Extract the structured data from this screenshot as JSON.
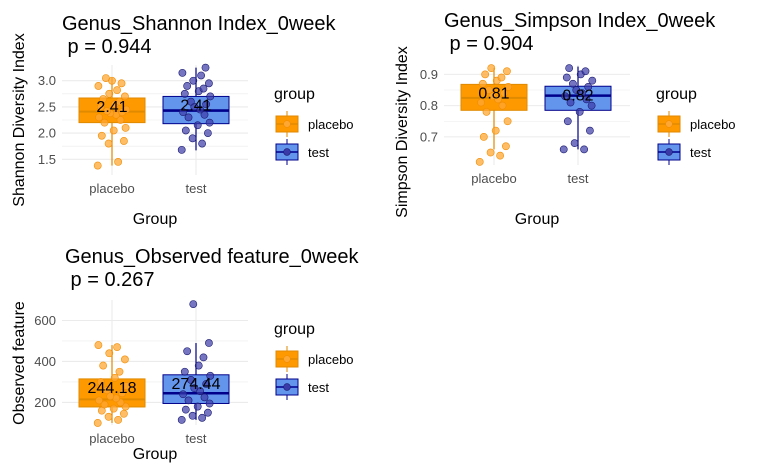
{
  "colors": {
    "placebo_fill": "#FF9900",
    "placebo_line": "#E08A00",
    "placebo_point": "#FFA733",
    "test_fill": "#6495ED",
    "test_line": "#00008B",
    "test_point": "#3A3AA8",
    "grid": "#ebebeb"
  },
  "chart_data": [
    {
      "type": "box",
      "title": "Genus_Shannon Index_0week",
      "subtitle": " p = 0.944",
      "xlabel": "Group",
      "ylabel": "Shannon Diversity Index",
      "categories": [
        "placebo",
        "test"
      ],
      "ylim": [
        1.2,
        3.3
      ],
      "yticks": [
        1.5,
        2.0,
        2.5,
        3.0
      ],
      "ytick_labels": [
        "1.5",
        "2.0",
        "2.5",
        "3.0"
      ],
      "legend_title": "group",
      "legend": [
        "placebo",
        "test"
      ],
      "boxes": [
        {
          "name": "placebo",
          "whisker_low": 1.38,
          "q1": 2.2,
          "median": 2.41,
          "q3": 2.67,
          "whisker_high": 3.05,
          "mean_label": "2.41"
        },
        {
          "name": "test",
          "whisker_low": 1.67,
          "q1": 2.18,
          "median": 2.43,
          "q3": 2.7,
          "whisker_high": 3.25,
          "mean_label": "2.41"
        }
      ],
      "points": [
        [
          1.38,
          1.45,
          1.8,
          1.85,
          1.95,
          2.05,
          2.1,
          2.2,
          2.25,
          2.3,
          2.35,
          2.38,
          2.4,
          2.42,
          2.45,
          2.5,
          2.55,
          2.6,
          2.65,
          2.7,
          2.75,
          2.82,
          2.9,
          2.95,
          3.0,
          3.05
        ],
        [
          1.68,
          1.8,
          1.9,
          2.0,
          2.05,
          2.15,
          2.2,
          2.3,
          2.35,
          2.4,
          2.45,
          2.5,
          2.55,
          2.6,
          2.7,
          2.75,
          2.8,
          2.85,
          2.9,
          2.95,
          3.0,
          3.1,
          3.15,
          3.25
        ]
      ]
    },
    {
      "type": "box",
      "title": "Genus_Simpson Index_0week",
      "subtitle": " p = 0.904",
      "xlabel": "Group",
      "ylabel": "Simpson Diversity Index",
      "categories": [
        "placebo",
        "test"
      ],
      "ylim": [
        0.61,
        0.93
      ],
      "yticks": [
        0.7,
        0.8,
        0.9
      ],
      "ytick_labels": [
        "0.7",
        "0.8",
        "0.9"
      ],
      "legend_title": "group",
      "legend": [
        "placebo",
        "test"
      ],
      "boxes": [
        {
          "name": "placebo",
          "whisker_low": 0.66,
          "q1": 0.785,
          "median": 0.825,
          "q3": 0.868,
          "whisker_high": 0.92,
          "mean_label": "0.81"
        },
        {
          "name": "test",
          "whisker_low": 0.66,
          "q1": 0.785,
          "median": 0.832,
          "q3": 0.862,
          "whisker_high": 0.925,
          "mean_label": "0.82"
        }
      ],
      "points": [
        [
          0.62,
          0.64,
          0.65,
          0.67,
          0.7,
          0.72,
          0.75,
          0.78,
          0.8,
          0.81,
          0.82,
          0.83,
          0.84,
          0.85,
          0.86,
          0.87,
          0.88,
          0.89,
          0.9,
          0.91,
          0.92
        ],
        [
          0.66,
          0.66,
          0.68,
          0.72,
          0.75,
          0.78,
          0.8,
          0.81,
          0.82,
          0.83,
          0.84,
          0.85,
          0.86,
          0.87,
          0.88,
          0.89,
          0.9,
          0.91,
          0.92
        ]
      ]
    },
    {
      "type": "box",
      "title": "Genus_Observed feature_0week",
      "subtitle": " p = 0.267",
      "xlabel": "Group",
      "ylabel": "Observed feature",
      "categories": [
        "placebo",
        "test"
      ],
      "ylim": [
        90,
        700
      ],
      "yticks": [
        200,
        400,
        600
      ],
      "ytick_labels": [
        "200",
        "400",
        "600"
      ],
      "legend_title": "group",
      "legend": [
        "placebo",
        "test"
      ],
      "boxes": [
        {
          "name": "placebo",
          "whisker_low": 100,
          "q1": 178,
          "median": 215,
          "q3": 315,
          "whisker_high": 480,
          "mean_label": "244.18"
        },
        {
          "name": "test",
          "whisker_low": 115,
          "q1": 195,
          "median": 245,
          "q3": 335,
          "whisker_high": 490,
          "mean_label": "274.44"
        }
      ],
      "points": [
        [
          100,
          115,
          130,
          145,
          160,
          170,
          180,
          190,
          200,
          210,
          220,
          230,
          245,
          260,
          280,
          300,
          320,
          350,
          380,
          410,
          440,
          470,
          480
        ],
        [
          115,
          125,
          135,
          150,
          165,
          180,
          195,
          210,
          225,
          240,
          255,
          270,
          290,
          310,
          330,
          350,
          380,
          420,
          450,
          490,
          680
        ]
      ]
    }
  ]
}
